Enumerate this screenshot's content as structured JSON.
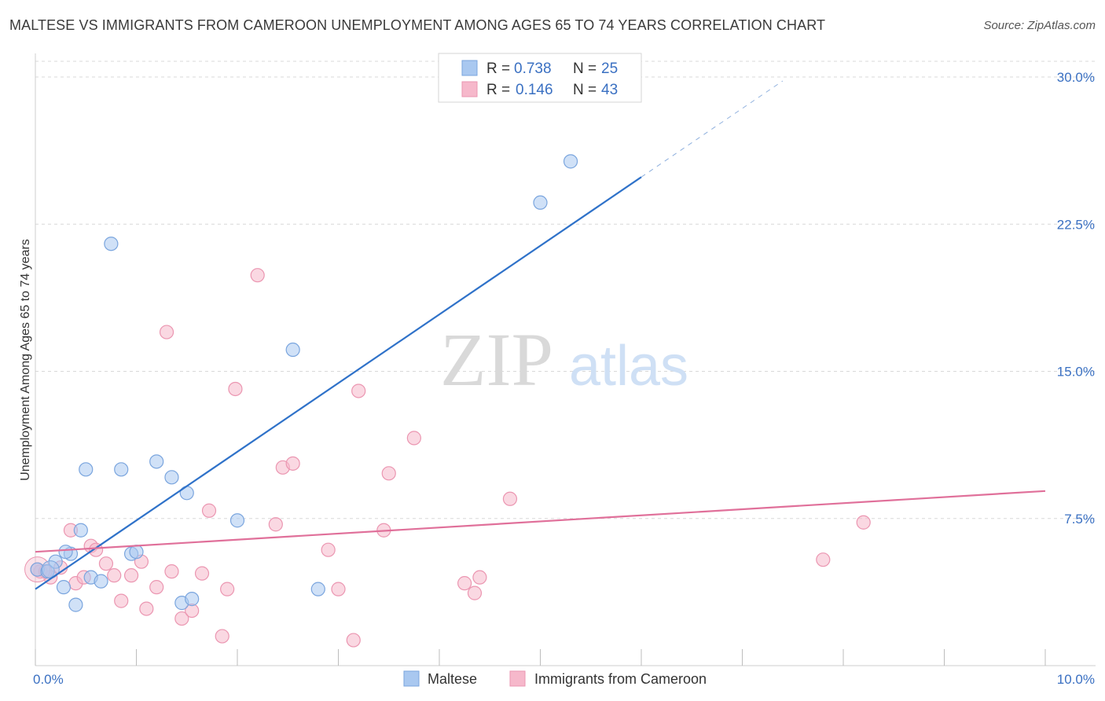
{
  "title": "MALTESE VS IMMIGRANTS FROM CAMEROON UNEMPLOYMENT AMONG AGES 65 TO 74 YEARS CORRELATION CHART",
  "source": "Source: ZipAtlas.com",
  "watermark": {
    "zip": "ZIP",
    "atlas": "atlas"
  },
  "colors": {
    "blue_fill": "#a9c8f0",
    "blue_stroke": "#7aa5de",
    "blue_line": "#2f72c9",
    "pink_fill": "#f6b8cb",
    "pink_stroke": "#eb96b1",
    "pink_line": "#e0709a",
    "grid": "#d8d8d8",
    "axis_text": "#3a70c2"
  },
  "chart_data": {
    "type": "scatter",
    "title": "MALTESE VS IMMIGRANTS FROM CAMEROON UNEMPLOYMENT AMONG AGES 65 TO 74 YEARS CORRELATION CHART",
    "xlabel": "",
    "ylabel": "Unemployment Among Ages 65 to 74 years",
    "xlim": [
      0,
      10
    ],
    "ylim": [
      0,
      30
    ],
    "x_tick_labels": [
      "0.0%",
      "10.0%"
    ],
    "y_ticks": [
      7.5,
      15.0,
      22.5,
      30.0
    ],
    "y_tick_labels": [
      "7.5%",
      "15.0%",
      "22.5%",
      "30.0%"
    ],
    "legend": [
      {
        "r_label": "R =",
        "r_value": "0.738",
        "n_label": "N =",
        "n_value": "25"
      },
      {
        "r_label": "R =",
        "r_value": "0.146",
        "n_label": "N =",
        "n_value": "43"
      }
    ],
    "series": [
      {
        "name": "Maltese",
        "color": "blue",
        "points": [
          [
            0.02,
            4.9
          ],
          [
            0.12,
            4.8
          ],
          [
            0.2,
            5.3
          ],
          [
            0.28,
            4.0
          ],
          [
            0.35,
            5.7
          ],
          [
            0.4,
            3.1
          ],
          [
            0.5,
            10.0
          ],
          [
            0.55,
            4.5
          ],
          [
            0.65,
            4.3
          ],
          [
            0.75,
            21.5
          ],
          [
            0.85,
            10.0
          ],
          [
            0.95,
            5.7
          ],
          [
            1.2,
            10.4
          ],
          [
            1.35,
            9.6
          ],
          [
            1.45,
            3.2
          ],
          [
            1.5,
            8.8
          ],
          [
            1.55,
            3.4
          ],
          [
            2.0,
            7.4
          ],
          [
            2.55,
            16.1
          ],
          [
            2.8,
            3.9
          ],
          [
            5.0,
            23.6
          ],
          [
            5.3,
            25.7
          ],
          [
            0.3,
            5.8
          ],
          [
            1.0,
            5.8
          ],
          [
            0.45,
            6.9
          ]
        ],
        "trend": {
          "x1": 0.0,
          "y1": 3.9,
          "x2": 6.0,
          "y2": 24.9,
          "dash_x2": 7.4,
          "dash_y2": 29.8
        }
      },
      {
        "name": "Immigrants from Cameroon",
        "color": "pink",
        "points": [
          [
            0.05,
            4.8
          ],
          [
            0.15,
            4.5
          ],
          [
            0.25,
            5.0
          ],
          [
            0.35,
            6.9
          ],
          [
            0.4,
            4.2
          ],
          [
            0.48,
            4.5
          ],
          [
            0.55,
            6.1
          ],
          [
            0.6,
            5.9
          ],
          [
            0.7,
            5.2
          ],
          [
            0.78,
            4.6
          ],
          [
            0.85,
            3.3
          ],
          [
            0.95,
            4.6
          ],
          [
            1.05,
            5.3
          ],
          [
            1.1,
            2.9
          ],
          [
            1.2,
            4.0
          ],
          [
            1.3,
            17.0
          ],
          [
            1.35,
            4.8
          ],
          [
            1.45,
            2.4
          ],
          [
            1.55,
            2.8
          ],
          [
            1.65,
            4.7
          ],
          [
            1.72,
            7.9
          ],
          [
            1.85,
            1.5
          ],
          [
            1.9,
            3.9
          ],
          [
            1.98,
            14.1
          ],
          [
            2.2,
            19.9
          ],
          [
            2.38,
            7.2
          ],
          [
            2.45,
            10.1
          ],
          [
            2.55,
            10.3
          ],
          [
            2.9,
            5.9
          ],
          [
            3.0,
            3.9
          ],
          [
            3.15,
            1.3
          ],
          [
            3.2,
            14.0
          ],
          [
            3.45,
            6.9
          ],
          [
            3.5,
            9.8
          ],
          [
            3.75,
            11.6
          ],
          [
            4.25,
            4.2
          ],
          [
            4.35,
            3.7
          ],
          [
            4.4,
            4.5
          ],
          [
            4.7,
            8.5
          ],
          [
            7.8,
            5.4
          ],
          [
            8.2,
            7.3
          ],
          [
            0.02,
            4.9
          ],
          [
            0.1,
            4.8
          ]
        ],
        "trend": {
          "x1": 0.0,
          "y1": 5.8,
          "x2": 10.0,
          "y2": 8.9
        }
      }
    ]
  },
  "bottom_legend": [
    "Maltese",
    "Immigrants from Cameroon"
  ]
}
